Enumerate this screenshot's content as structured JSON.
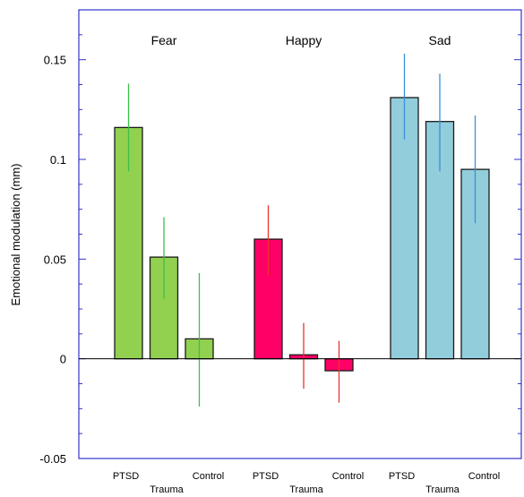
{
  "chart_data": {
    "type": "bar",
    "ylabel": "Emotional modulation (mm)",
    "xlabel": "",
    "ylim": [
      -0.05,
      0.175
    ],
    "yticks": [
      -0.05,
      0,
      0.05,
      0.1,
      0.15
    ],
    "ytick_labels": [
      "-0.05",
      "0",
      "0.05",
      "0.1",
      "0.15"
    ],
    "categories": [
      "PTSD",
      "Trauma",
      "Control"
    ],
    "groups": [
      {
        "name": "Fear",
        "color": "#92d050",
        "error_color": "#3dbf4a",
        "values": [
          0.116,
          0.051,
          0.01
        ],
        "errors": [
          [
            0.094,
            0.138
          ],
          [
            0.03,
            0.071
          ],
          [
            -0.024,
            0.043
          ]
        ]
      },
      {
        "name": "Happy",
        "color": "#ff0066",
        "error_color": "#e8352e",
        "values": [
          0.06,
          0.002,
          -0.006
        ],
        "errors": [
          [
            0.042,
            0.077
          ],
          [
            -0.015,
            0.018
          ],
          [
            -0.022,
            0.009
          ]
        ]
      },
      {
        "name": "Sad",
        "color": "#92cddc",
        "error_color": "#3a8fd6",
        "values": [
          0.131,
          0.119,
          0.095
        ],
        "errors": [
          [
            0.11,
            0.153
          ],
          [
            0.094,
            0.143
          ],
          [
            0.068,
            0.122
          ]
        ]
      }
    ],
    "grid": false,
    "legend": "none"
  },
  "colors": {
    "frame": "#3333cc",
    "bar_outline": "#1a1a1a",
    "zero_line": "#000000"
  }
}
